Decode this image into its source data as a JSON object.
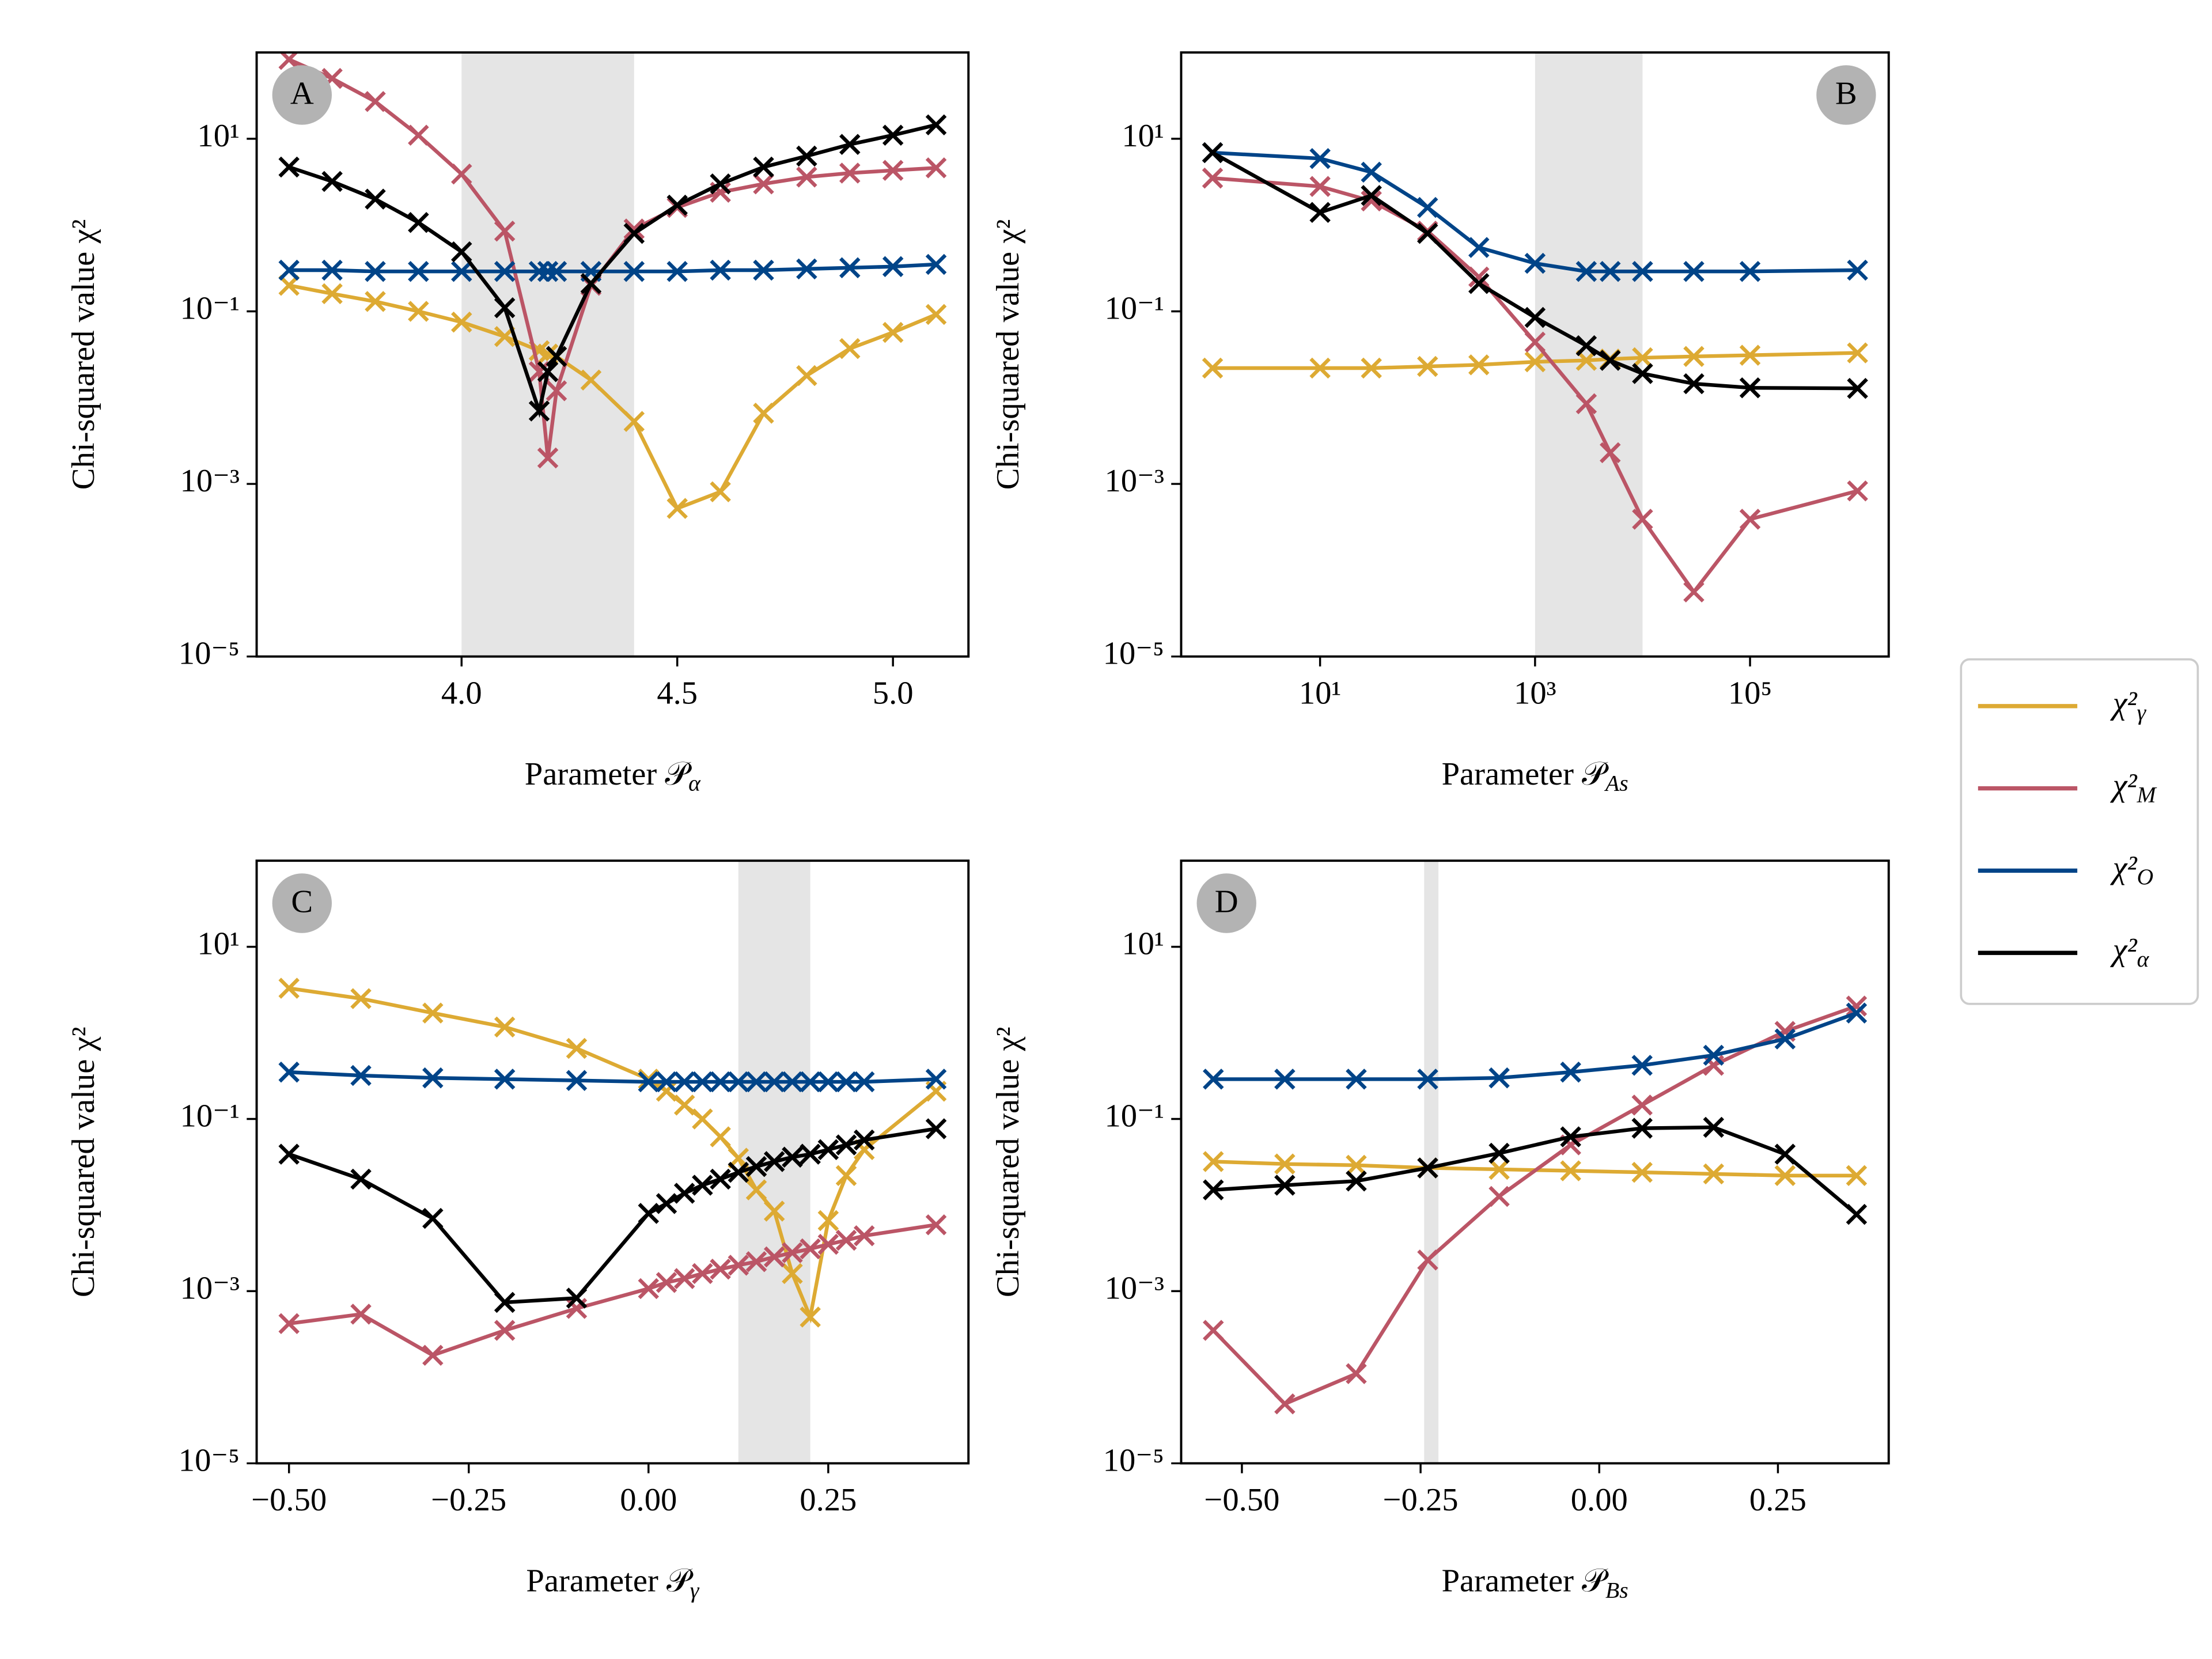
{
  "chart_data": [
    {
      "type": "line",
      "label": "A",
      "xlabel": "Parameter 𝒫α",
      "ylabel": "Chi-squared value χ²",
      "xscale": "linear",
      "yscale": "log",
      "xlim": [
        3.525,
        5.175
      ],
      "ylim": [
        1e-05,
        100
      ],
      "xticks": [
        {
          "value": 4,
          "label": "4.0"
        },
        {
          "value": 4.5,
          "label": "4.5"
        },
        {
          "value": 5,
          "label": "5.0"
        }
      ],
      "yticks": [
        {
          "value": 1e-05,
          "label": "10⁻⁵"
        },
        {
          "value": 0.001,
          "label": "10⁻³"
        },
        {
          "value": 0.1,
          "label": "10⁻¹"
        },
        {
          "value": 10,
          "label": "10¹"
        }
      ],
      "shaded": [
        4.0,
        4.4
      ],
      "badge_corner": "left",
      "x": [
        3.6,
        3.7,
        3.8,
        3.9,
        4.0,
        4.1,
        4.18,
        4.2,
        4.22,
        4.3,
        4.4,
        4.5,
        4.6,
        4.7,
        4.8,
        4.9,
        5.0,
        5.1
      ],
      "series": [
        {
          "color": "#DDAA33",
          "values": [
            0.2,
            0.16,
            0.13,
            0.1,
            0.075,
            0.051,
            0.035,
            0.032,
            0.03,
            0.016,
            0.0053,
            0.00052,
            0.00081,
            0.0066,
            0.018,
            0.037,
            0.057,
            0.092
          ]
        },
        {
          "color": "#BB5566",
          "values": [
            83,
            50,
            27,
            11,
            3.9,
            0.85,
            0.02,
            0.002,
            0.012,
            0.2,
            0.9,
            1.6,
            2.4,
            3,
            3.6,
            4,
            4.3,
            4.6
          ]
        },
        {
          "color": "#004488",
          "values": [
            0.3,
            0.3,
            0.29,
            0.29,
            0.29,
            0.29,
            0.29,
            0.29,
            0.29,
            0.29,
            0.29,
            0.29,
            0.3,
            0.3,
            0.31,
            0.32,
            0.33,
            0.35
          ]
        },
        {
          "color": "#000000",
          "values": [
            4.7,
            3.2,
            2,
            1.07,
            0.49,
            0.11,
            0.007,
            0.02,
            0.03,
            0.21,
            0.8,
            1.7,
            3,
            4.7,
            6.3,
            8.6,
            11,
            14.5
          ]
        }
      ]
    },
    {
      "type": "line",
      "label": "B",
      "xlabel": "Parameter 𝒫As",
      "ylabel": "Chi-squared value χ²",
      "xscale": "log",
      "yscale": "log",
      "xlim": [
        0.51,
        1950000
      ],
      "ylim": [
        1e-05,
        100
      ],
      "xticks": [
        {
          "value": 10,
          "label": "10¹"
        },
        {
          "value": 1000,
          "label": "10³"
        },
        {
          "value": 100000,
          "label": "10⁵"
        }
      ],
      "yticks": [
        {
          "value": 1e-05,
          "label": "10⁻⁵"
        },
        {
          "value": 0.001,
          "label": "10⁻³"
        },
        {
          "value": 0.1,
          "label": "10⁻¹"
        },
        {
          "value": 10,
          "label": "10¹"
        }
      ],
      "shaded": [
        1000,
        10000
      ],
      "badge_corner": "right",
      "x": [
        1,
        10,
        30,
        100,
        300,
        1000,
        3000,
        5000,
        10000,
        30000,
        100000,
        1000000
      ],
      "series": [
        {
          "color": "#DDAA33",
          "values": [
            0.022,
            0.022,
            0.022,
            0.023,
            0.024,
            0.026,
            0.027,
            0.028,
            0.029,
            0.03,
            0.031,
            0.033
          ]
        },
        {
          "color": "#BB5566",
          "values": [
            3.5,
            2.8,
            1.9,
            0.85,
            0.25,
            0.044,
            0.0085,
            0.0023,
            0.00039,
            5.6e-05,
            0.00039,
            0.00083
          ]
        },
        {
          "color": "#004488",
          "values": [
            6.9,
            5.9,
            4.1,
            1.6,
            0.55,
            0.36,
            0.29,
            0.29,
            0.29,
            0.29,
            0.29,
            0.3
          ]
        },
        {
          "color": "#000000",
          "values": [
            6.9,
            1.4,
            2.2,
            0.8,
            0.21,
            0.085,
            0.04,
            0.027,
            0.019,
            0.0145,
            0.013,
            0.0128
          ]
        }
      ]
    },
    {
      "type": "line",
      "label": "C",
      "xlabel": "Parameter 𝒫γ",
      "ylabel": "Chi-squared value χ²",
      "xscale": "linear",
      "yscale": "log",
      "xlim": [
        -0.545,
        0.445
      ],
      "ylim": [
        1e-05,
        100
      ],
      "xticks": [
        {
          "value": -0.5,
          "label": "−0.50"
        },
        {
          "value": -0.25,
          "label": "−0.25"
        },
        {
          "value": 0,
          "label": "0.00"
        },
        {
          "value": 0.25,
          "label": "0.25"
        }
      ],
      "yticks": [
        {
          "value": 1e-05,
          "label": "10⁻⁵"
        },
        {
          "value": 0.001,
          "label": "10⁻³"
        },
        {
          "value": 0.1,
          "label": "10⁻¹"
        },
        {
          "value": 10,
          "label": "10¹"
        }
      ],
      "shaded": [
        0.125,
        0.225
      ],
      "badge_corner": "left",
      "x": [
        -0.5,
        -0.4,
        -0.3,
        -0.2,
        -0.1,
        0,
        0.025,
        0.05,
        0.075,
        0.1,
        0.125,
        0.15,
        0.175,
        0.2,
        0.225,
        0.25,
        0.275,
        0.3,
        0.4
      ],
      "series": [
        {
          "color": "#DDAA33",
          "values": [
            3.3,
            2.5,
            1.7,
            1.17,
            0.66,
            0.29,
            0.21,
            0.145,
            0.1,
            0.062,
            0.035,
            0.015,
            0.0085,
            0.0016,
            0.0005,
            0.0066,
            0.022,
            0.044,
            0.21
          ]
        },
        {
          "color": "#BB5566",
          "values": [
            0.00042,
            0.00054,
            0.00018,
            0.00035,
            0.00063,
            0.00107,
            0.00126,
            0.0014,
            0.0016,
            0.0018,
            0.002,
            0.0022,
            0.0025,
            0.0028,
            0.0031,
            0.0035,
            0.0039,
            0.0044,
            0.0059
          ]
        },
        {
          "color": "#004488",
          "values": [
            0.35,
            0.32,
            0.3,
            0.29,
            0.28,
            0.27,
            0.27,
            0.27,
            0.27,
            0.27,
            0.27,
            0.27,
            0.27,
            0.27,
            0.27,
            0.27,
            0.27,
            0.27,
            0.29
          ]
        },
        {
          "color": "#000000",
          "values": [
            0.039,
            0.02,
            0.007,
            0.00074,
            0.00083,
            0.008,
            0.0104,
            0.0137,
            0.017,
            0.02,
            0.024,
            0.028,
            0.032,
            0.036,
            0.039,
            0.044,
            0.05,
            0.057,
            0.077
          ]
        }
      ]
    },
    {
      "type": "line",
      "label": "D",
      "xlabel": "Parameter 𝒫Bs",
      "ylabel": "Chi-squared value χ²",
      "xscale": "linear",
      "yscale": "log",
      "xlim": [
        -0.585,
        0.405
      ],
      "ylim": [
        1e-05,
        100
      ],
      "xticks": [
        {
          "value": -0.5,
          "label": "−0.50"
        },
        {
          "value": -0.25,
          "label": "−0.25"
        },
        {
          "value": 0,
          "label": "0.00"
        },
        {
          "value": 0.25,
          "label": "0.25"
        }
      ],
      "yticks": [
        {
          "value": 1e-05,
          "label": "10⁻⁵"
        },
        {
          "value": 0.001,
          "label": "10⁻³"
        },
        {
          "value": 0.1,
          "label": "10⁻¹"
        },
        {
          "value": 10,
          "label": "10¹"
        }
      ],
      "shaded": [
        -0.245,
        -0.225
      ],
      "badge_corner": "left",
      "x": [
        -0.54,
        -0.44,
        -0.34,
        -0.24,
        -0.14,
        -0.04,
        0.06,
        0.16,
        0.26,
        0.36
      ],
      "series": [
        {
          "color": "#DDAA33",
          "values": [
            0.032,
            0.03,
            0.029,
            0.027,
            0.026,
            0.025,
            0.024,
            0.023,
            0.022,
            0.022
          ]
        },
        {
          "color": "#BB5566",
          "values": [
            0.00035,
            4.9e-05,
            0.00011,
            0.0023,
            0.0126,
            0.05,
            0.145,
            0.42,
            1.04,
            2.05
          ]
        },
        {
          "color": "#004488",
          "values": [
            0.29,
            0.29,
            0.29,
            0.29,
            0.3,
            0.35,
            0.42,
            0.55,
            0.85,
            1.7
          ]
        },
        {
          "color": "#000000",
          "values": [
            0.015,
            0.017,
            0.019,
            0.027,
            0.04,
            0.062,
            0.078,
            0.08,
            0.039,
            0.0078
          ]
        }
      ]
    }
  ],
  "legend": [
    {
      "name": "χ²γ",
      "color": "#DDAA33"
    },
    {
      "name": "χ²M",
      "color": "#BB5566"
    },
    {
      "name": "χ²O",
      "color": "#004488"
    },
    {
      "name": "χ²α",
      "color": "#000000"
    }
  ]
}
